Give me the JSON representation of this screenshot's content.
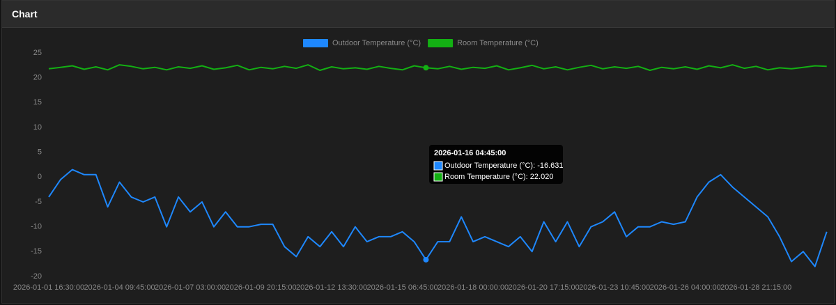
{
  "header": {
    "title": "Chart"
  },
  "chart_data": {
    "type": "line",
    "categories": [
      "2026-01-01 16:30:00",
      null,
      null,
      null,
      null,
      null,
      "2026-01-04 09:45:00",
      null,
      null,
      null,
      null,
      null,
      "2026-01-07 03:00:00",
      null,
      null,
      null,
      null,
      null,
      "2026-01-09 20:15:00",
      null,
      null,
      null,
      null,
      null,
      "2026-01-12 13:30:00",
      null,
      null,
      null,
      null,
      null,
      "2026-01-15 06:45:00",
      null,
      null,
      null,
      null,
      null,
      "2026-01-18 00:00:00",
      null,
      null,
      null,
      null,
      null,
      "2026-01-20 17:15:00",
      null,
      null,
      null,
      null,
      null,
      "2026-01-23 10:45:00",
      null,
      null,
      null,
      null,
      null,
      "2026-01-26 04:00:00",
      null,
      null,
      null,
      null,
      null,
      "2026-01-28 21:15:00",
      null,
      null,
      null,
      null,
      null,
      null
    ],
    "series": [
      {
        "name": "Outdoor Temperature (°C)",
        "color": "#1e88ff",
        "values": [
          -4,
          -0.5,
          1.5,
          0.5,
          0.5,
          -6,
          -1,
          -4,
          -5,
          -4,
          -10,
          -4,
          -7,
          -5,
          -10,
          -7,
          -10,
          -10,
          -9.5,
          -9.5,
          -14,
          -16,
          -12,
          -14,
          -11,
          -14,
          -10,
          -13,
          -12,
          -12,
          -11,
          -13,
          -16.631,
          -13,
          -13,
          -8,
          -13,
          -12,
          -13,
          -14,
          -12,
          -15,
          -9,
          -13,
          -9,
          -14,
          -10,
          -9,
          -7,
          -12,
          -10,
          -10,
          -9,
          -9.5,
          -9,
          -4,
          -1,
          0.5,
          -2,
          -4,
          -6,
          -8,
          -12,
          -17,
          -15,
          -18,
          -11
        ]
      },
      {
        "name": "Room Temperature (°C)",
        "color": "#13b013",
        "values": [
          21.8,
          22.1,
          22.4,
          21.7,
          22.2,
          21.6,
          22.6,
          22.3,
          21.8,
          22.1,
          21.6,
          22.2,
          21.9,
          22.4,
          21.7,
          22.0,
          22.5,
          21.6,
          22.1,
          21.8,
          22.3,
          21.9,
          22.6,
          21.5,
          22.2,
          21.8,
          22.0,
          21.7,
          22.3,
          21.9,
          21.6,
          22.4,
          22.02,
          21.8,
          22.3,
          21.7,
          22.1,
          21.9,
          22.4,
          21.6,
          22.0,
          22.5,
          21.8,
          22.2,
          21.6,
          22.1,
          22.5,
          21.8,
          22.2,
          21.9,
          22.3,
          21.5,
          22.1,
          21.8,
          22.2,
          21.7,
          22.4,
          22.0,
          22.6,
          21.9,
          22.3,
          21.6,
          22.0,
          21.8,
          22.1,
          22.4,
          22.3
        ]
      }
    ],
    "ylim": [
      -20,
      25
    ],
    "yticks": [
      -20,
      -15,
      -10,
      -5,
      0,
      5,
      10,
      15,
      20,
      25
    ],
    "legend": "top",
    "tooltip": {
      "title": "2026-01-16 04:45:00",
      "lines": [
        "Outdoor Temperature (°C): -16.631",
        "Room Temperature (°C): 22.020"
      ]
    }
  }
}
